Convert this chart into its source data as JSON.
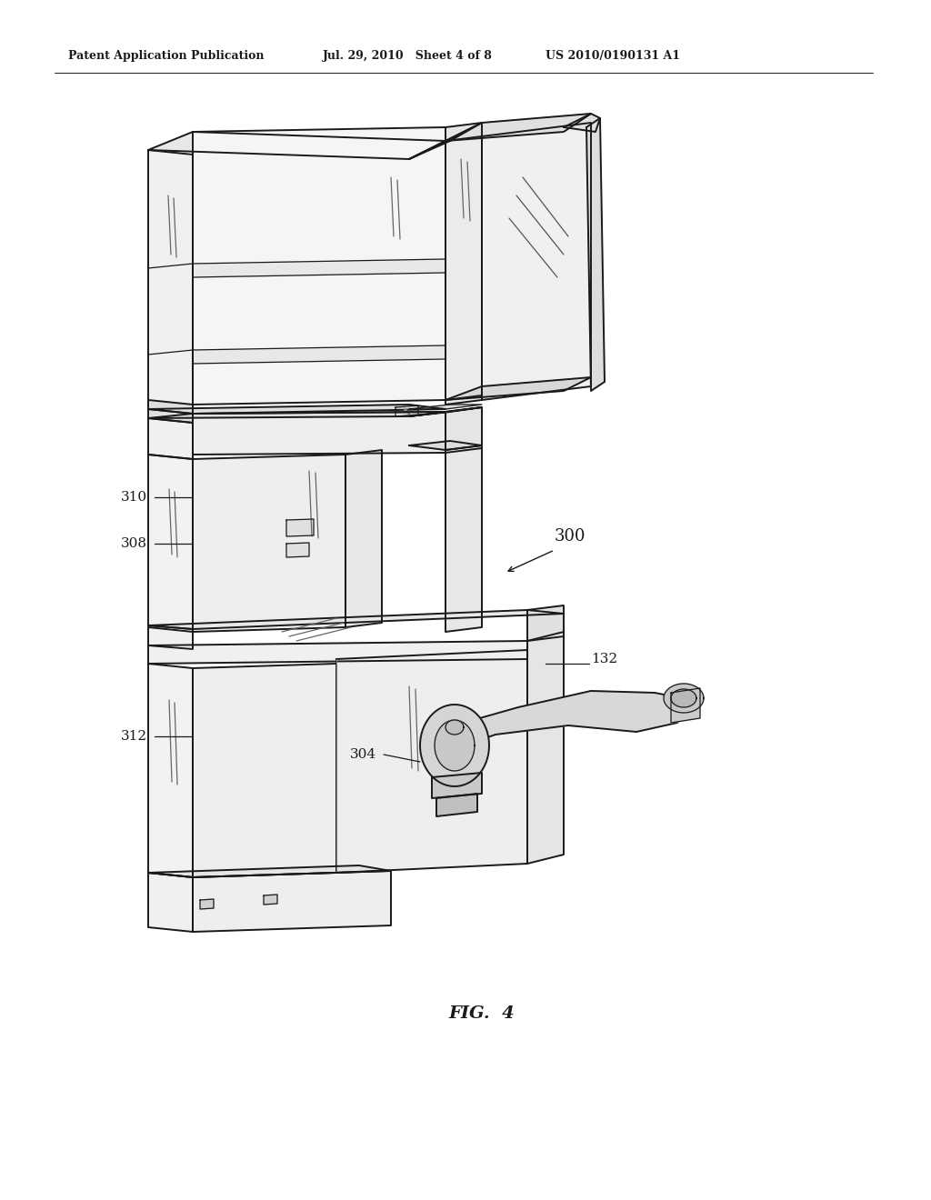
{
  "bg_color": "#ffffff",
  "line_color": "#1a1a1a",
  "header_text": "Patent Application Publication",
  "header_date": "Jul. 29, 2010   Sheet 4 of 8",
  "header_patent": "US 2010/0190131 A1",
  "fig_label": "FIG.  4",
  "figsize": [
    10.24,
    13.2
  ],
  "dpi": 100
}
